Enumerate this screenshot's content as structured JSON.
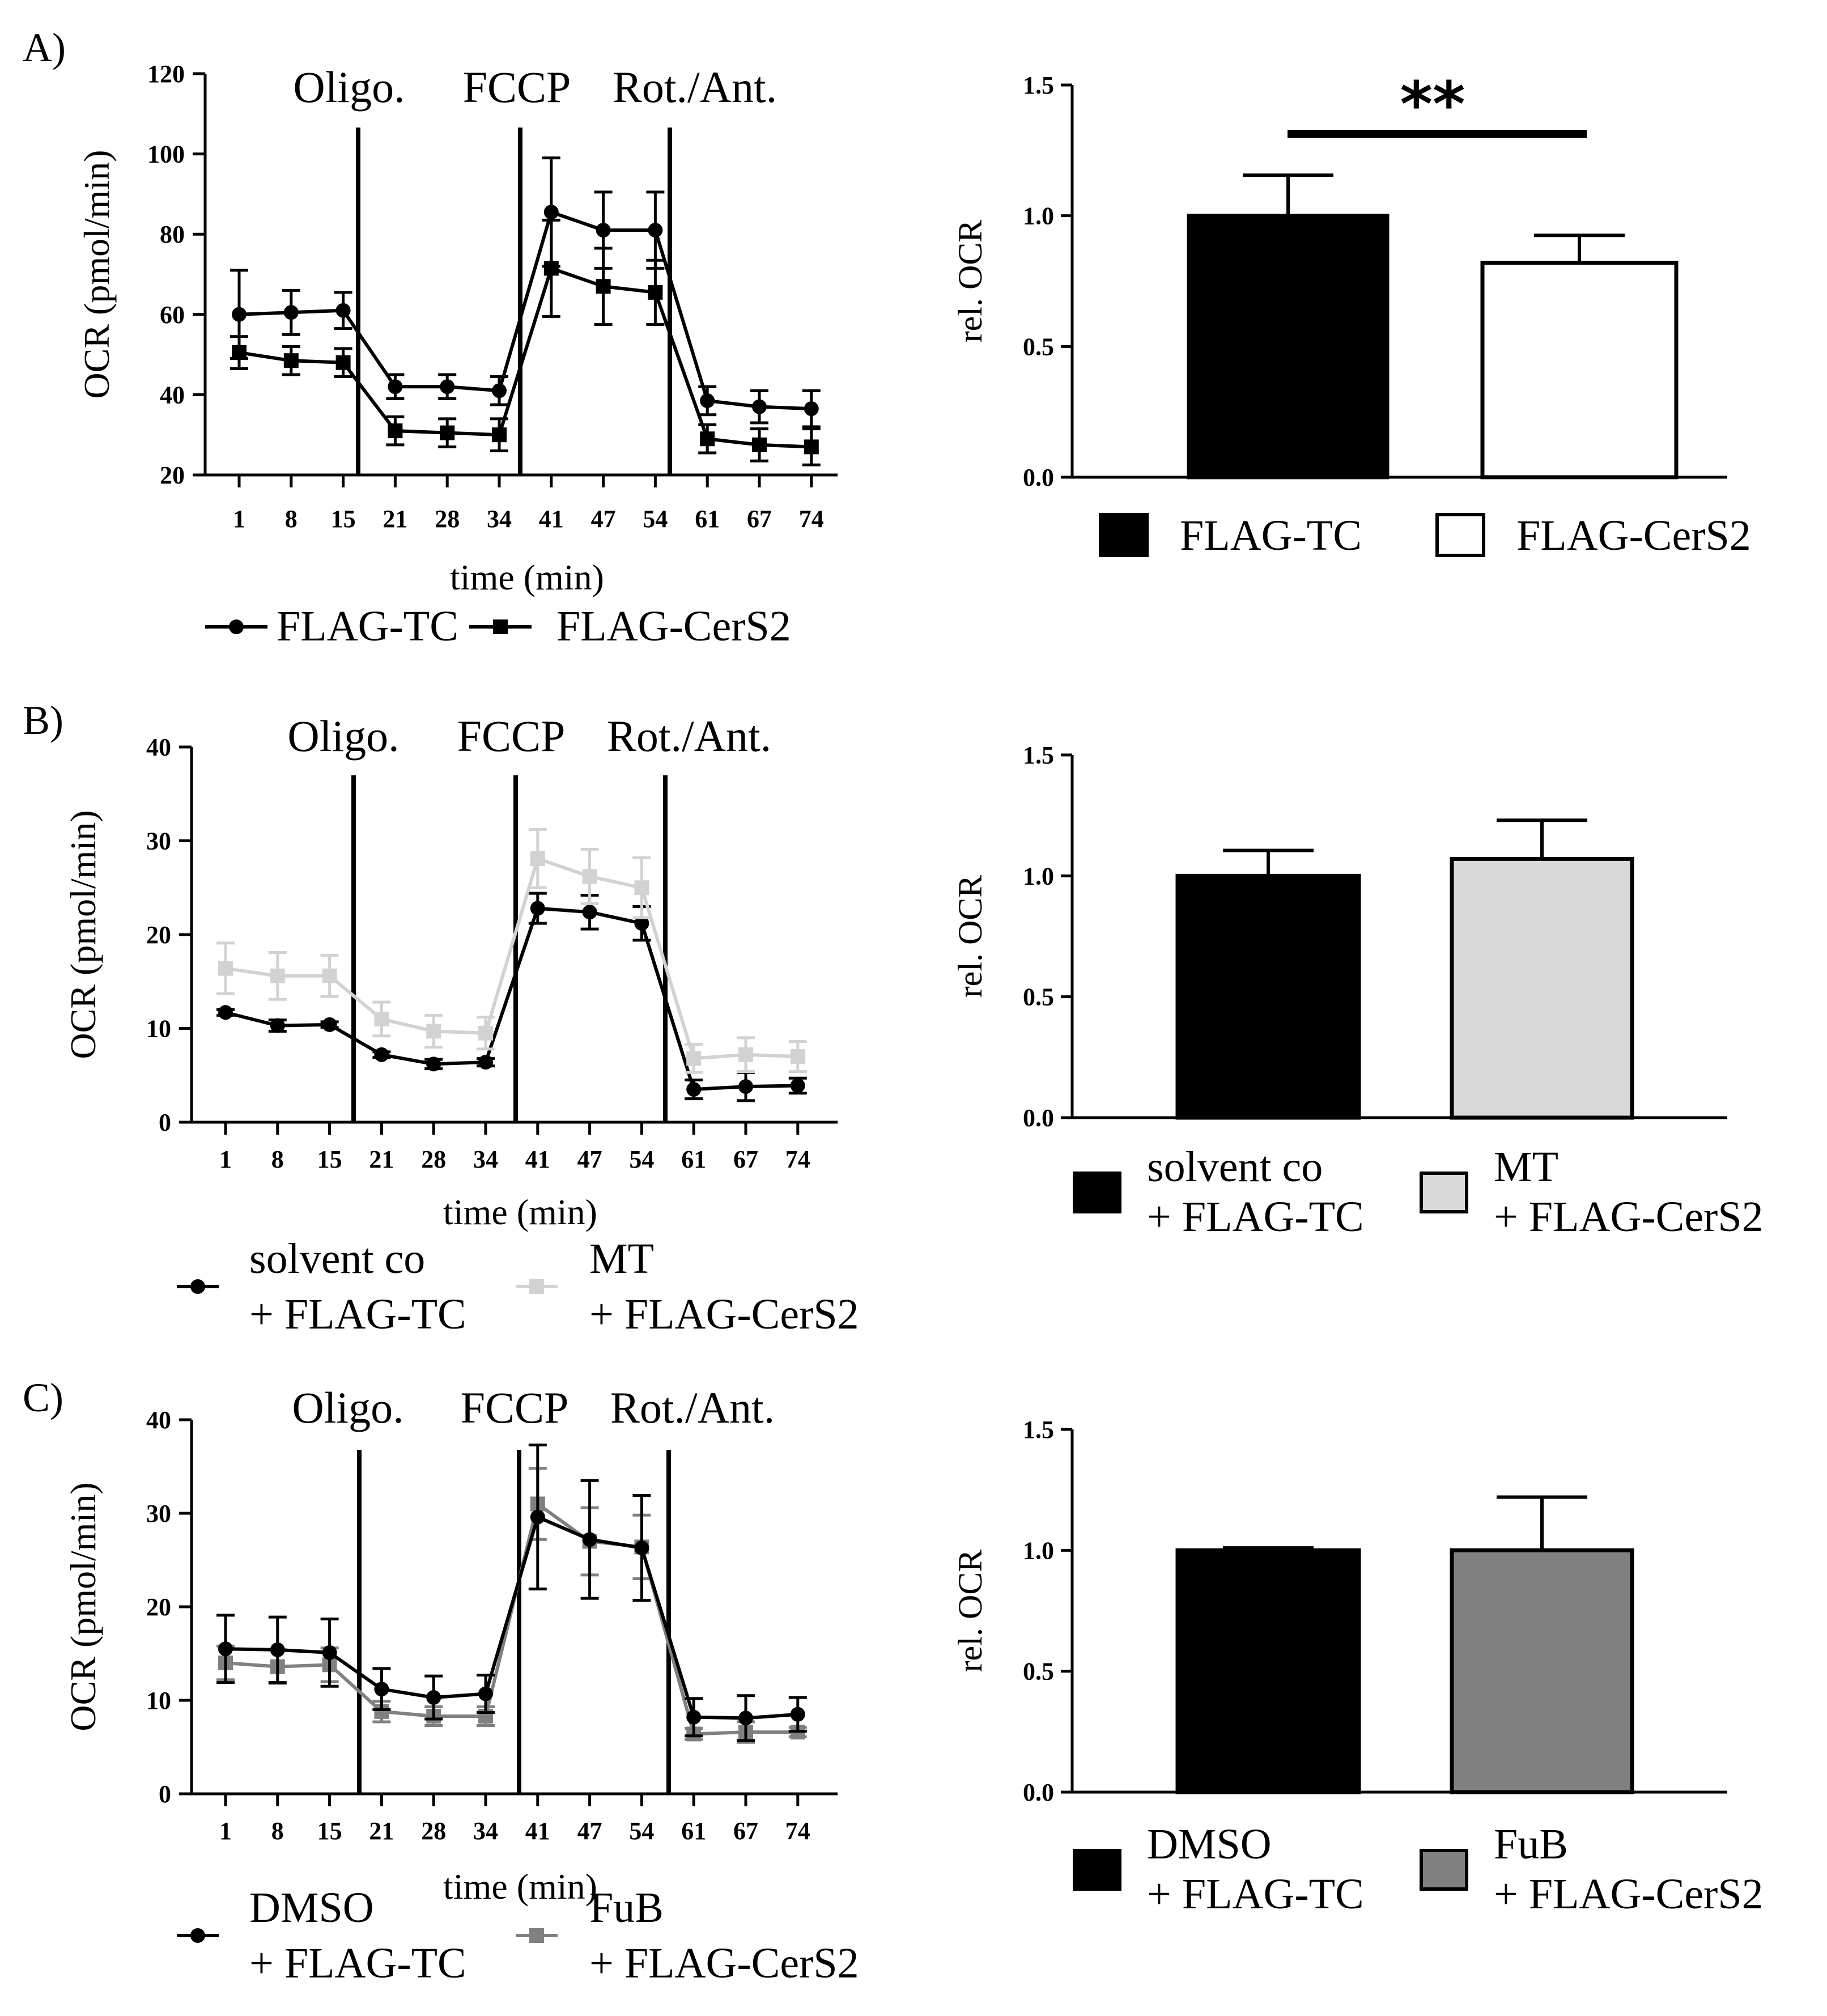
{
  "figure": {
    "panels": [
      {
        "label": "A)",
        "line_chart": {
          "type": "line",
          "title": "",
          "xlabel": "time (min)",
          "ylabel": "OCR (pmol/min)",
          "ylim": [
            20,
            120
          ],
          "yticks": [
            20,
            40,
            60,
            80,
            100,
            120
          ],
          "categories": [
            "1",
            "8",
            "15",
            "21",
            "28",
            "34",
            "41",
            "47",
            "54",
            "61",
            "67",
            "74"
          ],
          "injections": [
            {
              "after_index": 2,
              "label": "Oligo."
            },
            {
              "after_index": 5,
              "label": "FCCP"
            },
            {
              "after_index": 8,
              "label": "Rot./Ant."
            }
          ],
          "series": [
            {
              "name": "FLAG-TC",
              "marker": "circle",
              "color": "#000000",
              "values": [
                60,
                60.5,
                61,
                42,
                42,
                41,
                85.5,
                81,
                81,
                38.5,
                37,
                36.5
              ],
              "errors": [
                11,
                5.5,
                4.5,
                3,
                3,
                3.5,
                13.5,
                9.5,
                9.5,
                3.5,
                4,
                4.5
              ]
            },
            {
              "name": "FLAG-CerS2",
              "marker": "square",
              "color": "#000000",
              "values": [
                50.5,
                48.5,
                48,
                31,
                30.5,
                30,
                71.5,
                67,
                65.5,
                29,
                27.5,
                27
              ],
              "errors": [
                4,
                3.5,
                3.5,
                3.5,
                3.5,
                4,
                12,
                9.5,
                8,
                3.5,
                4,
                4.5
              ]
            }
          ]
        },
        "bar_chart": {
          "type": "bar",
          "title": "",
          "xlabel": "",
          "ylabel": "rel. OCR",
          "ylim": [
            0,
            1.5
          ],
          "yticks": [
            "0.0",
            "0.5",
            "1.0",
            "1.5"
          ],
          "significance": "**",
          "series": [
            {
              "name": "FLAG-TC",
              "value": 1.0,
              "error": 0.155,
              "color": "#000000"
            },
            {
              "name": "FLAG-CerS2",
              "value": 0.82,
              "error": 0.105,
              "color": "#ffffff"
            }
          ]
        }
      },
      {
        "label": "B)",
        "line_chart": {
          "type": "line",
          "title": "",
          "xlabel": "time (min)",
          "ylabel": "OCR (pmol/min)",
          "ylim": [
            0,
            40
          ],
          "yticks": [
            0,
            10,
            20,
            30,
            40
          ],
          "categories": [
            "1",
            "8",
            "15",
            "21",
            "28",
            "34",
            "41",
            "47",
            "54",
            "61",
            "67",
            "74"
          ],
          "injections": [
            {
              "after_index": 2,
              "label": "Oligo."
            },
            {
              "after_index": 5,
              "label": "FCCP"
            },
            {
              "after_index": 8,
              "label": "Rot./Ant."
            }
          ],
          "series": [
            {
              "name": "solvent co + FLAG-TC",
              "legend_lines": [
                "solvent co",
                "+ FLAG-TC"
              ],
              "marker": "circle",
              "color": "#000000",
              "values": [
                11.7,
                10.3,
                10.4,
                7.2,
                6.2,
                6.4,
                22.8,
                22.4,
                21.2,
                3.5,
                3.8,
                3.9
              ],
              "errors": [
                0.3,
                0.6,
                0.3,
                0.3,
                0.5,
                0.4,
                1.6,
                1.8,
                1.8,
                1.0,
                1.5,
                0.8
              ]
            },
            {
              "name": "MT + FLAG-CerS2",
              "legend_lines": [
                "MT",
                "+ FLAG-CerS2"
              ],
              "marker": "square",
              "color": "#d2d2d2",
              "values": [
                16.4,
                15.6,
                15.6,
                11.0,
                9.7,
                9.5,
                28.1,
                26.2,
                25.0,
                6.8,
                7.2,
                7.0
              ],
              "errors": [
                2.7,
                2.5,
                2.2,
                1.8,
                1.7,
                1.7,
                3.1,
                2.9,
                3.2,
                1.5,
                1.8,
                1.6
              ]
            }
          ]
        },
        "bar_chart": {
          "type": "bar",
          "title": "",
          "xlabel": "",
          "ylabel": "rel. OCR",
          "ylim": [
            0,
            1.5
          ],
          "yticks": [
            "0.0",
            "0.5",
            "1.0",
            "1.5"
          ],
          "significance": "",
          "series": [
            {
              "name": "solvent co + FLAG-TC",
              "legend_lines": [
                "solvent co",
                "+ FLAG-TC"
              ],
              "value": 1.0,
              "error": 0.105,
              "color": "#000000"
            },
            {
              "name": "MT + FLAG-CerS2",
              "legend_lines": [
                "MT",
                "+ FLAG-CerS2"
              ],
              "value": 1.07,
              "error": 0.16,
              "color": "#d9d9d9"
            }
          ]
        }
      },
      {
        "label": "C)",
        "line_chart": {
          "type": "line",
          "title": "",
          "xlabel": "time (min)",
          "ylabel": "OCR (pmol/min)",
          "ylim": [
            0,
            40
          ],
          "yticks": [
            0,
            10,
            20,
            30,
            40
          ],
          "categories": [
            "1",
            "8",
            "15",
            "21",
            "28",
            "34",
            "41",
            "47",
            "54",
            "61",
            "67",
            "74"
          ],
          "injections": [
            {
              "after_index": 2,
              "label": "Oligo."
            },
            {
              "after_index": 5,
              "label": "FCCP"
            },
            {
              "after_index": 8,
              "label": "Rot./Ant."
            }
          ],
          "series": [
            {
              "name": "FuB + FLAG-CerS2",
              "legend_lines": [
                "FuB",
                "+ FLAG-CerS2"
              ],
              "marker": "square",
              "color": "#808080",
              "values": [
                14.0,
                13.6,
                13.8,
                8.8,
                8.3,
                8.3,
                31.0,
                27.0,
                26.4,
                6.4,
                6.6,
                6.6
              ],
              "errors": [
                1.8,
                1.8,
                1.8,
                1.1,
                1.0,
                1.0,
                3.8,
                3.6,
                3.4,
                0.6,
                1.1,
                0.5
              ]
            },
            {
              "name": "DMSO + FLAG-TC",
              "legend_lines": [
                "DMSO",
                "+ FLAG-TC"
              ],
              "marker": "circle",
              "color": "#000000",
              "values": [
                15.5,
                15.4,
                15.1,
                11.2,
                10.3,
                10.7,
                29.6,
                27.2,
                26.3,
                8.2,
                8.1,
                8.5
              ],
              "errors": [
                3.6,
                3.5,
                3.6,
                2.2,
                2.3,
                2.0,
                7.7,
                6.3,
                5.6,
                2.0,
                2.4,
                1.8
              ]
            }
          ]
        },
        "bar_chart": {
          "type": "bar",
          "title": "",
          "xlabel": "",
          "ylabel": "rel. OCR",
          "ylim": [
            0,
            1.5
          ],
          "yticks": [
            "0.0",
            "0.5",
            "1.0",
            "1.5"
          ],
          "significance": "",
          "series": [
            {
              "name": "DMSO + FLAG-TC",
              "legend_lines": [
                "DMSO",
                "+ FLAG-TC"
              ],
              "value": 1.0,
              "error": 0.01,
              "color": "#000000"
            },
            {
              "name": "FuB + FLAG-CerS2",
              "legend_lines": [
                "FuB",
                "+ FLAG-CerS2"
              ],
              "value": 1.0,
              "error": 0.22,
              "color": "#808080"
            }
          ]
        }
      }
    ]
  }
}
